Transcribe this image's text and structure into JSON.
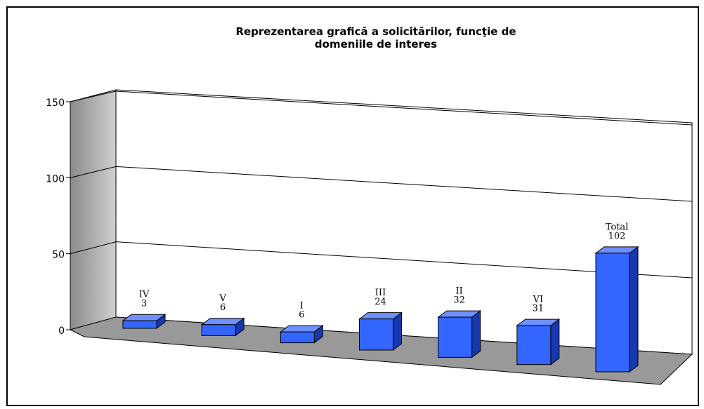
{
  "chart_data": {
    "type": "bar3d",
    "title": "Reprezentarea grafică a solicitărilor, funcţie de domeniile de interes",
    "categories": [
      "IV",
      "V",
      "I",
      "III",
      "II",
      "VI",
      "Total"
    ],
    "values": [
      3,
      6,
      6,
      24,
      32,
      31,
      102
    ],
    "color": "#3366ff",
    "ylim": [
      0,
      150
    ],
    "yticks": [
      0,
      50,
      100,
      150
    ],
    "grid": true
  }
}
